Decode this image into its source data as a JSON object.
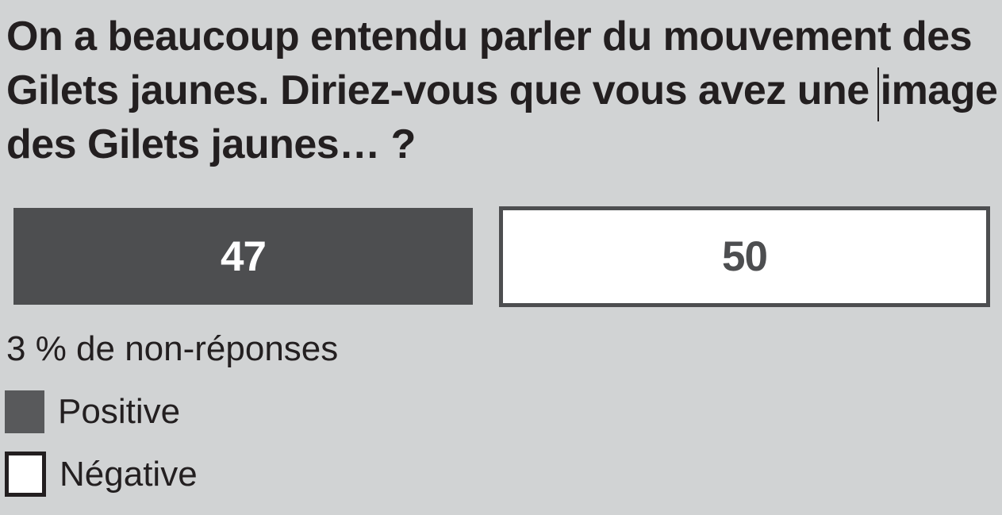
{
  "colors": {
    "background": "#D1D3D4",
    "bar_dark_gray": "#4D4E50",
    "legend_dark_gray": "#58595B",
    "text_black": "#231F20",
    "white": "#FFFFFF"
  },
  "title": {
    "full": "On a beaucoup entendu parler du mouvement des Gilets jaunes. Diriez-vous que vous avez une image des Gilets jaunes… ?",
    "lines": [
      "On a beaucoup entendu parler du mouvement des",
      "Gilets jaunes. Diriez-vous que vous avez une image",
      "des Gilets jaunes… ?"
    ]
  },
  "bars": [
    {
      "label": "Positive",
      "value": "47"
    },
    {
      "label": "Négative",
      "value": "50"
    }
  ],
  "note": "3 % de non-réponses",
  "legend": {
    "items": [
      {
        "label": "Positive",
        "swatch": "dark-gray-filled"
      },
      {
        "label": "Négative",
        "swatch": "white-black-outline"
      }
    ]
  },
  "chart_data": {
    "type": "bar",
    "title": "On a beaucoup entendu parler du mouvement des Gilets jaunes. Diriez-vous que vous avez une image des Gilets jaunes… ?",
    "categories": [
      "Positive",
      "Négative"
    ],
    "values": [
      47,
      50
    ],
    "unit": "%",
    "non_response_pct": 3,
    "note": "3 % de non-réponses",
    "orientation": "horizontal",
    "layout": "proportional side-by-side segments, widths proportional to values",
    "grid": false,
    "legend_position": "bottom-left",
    "series_colors": {
      "Positive": "#4D4E50",
      "Négative": "#FFFFFF"
    },
    "value_labels": "centered inside bars"
  }
}
